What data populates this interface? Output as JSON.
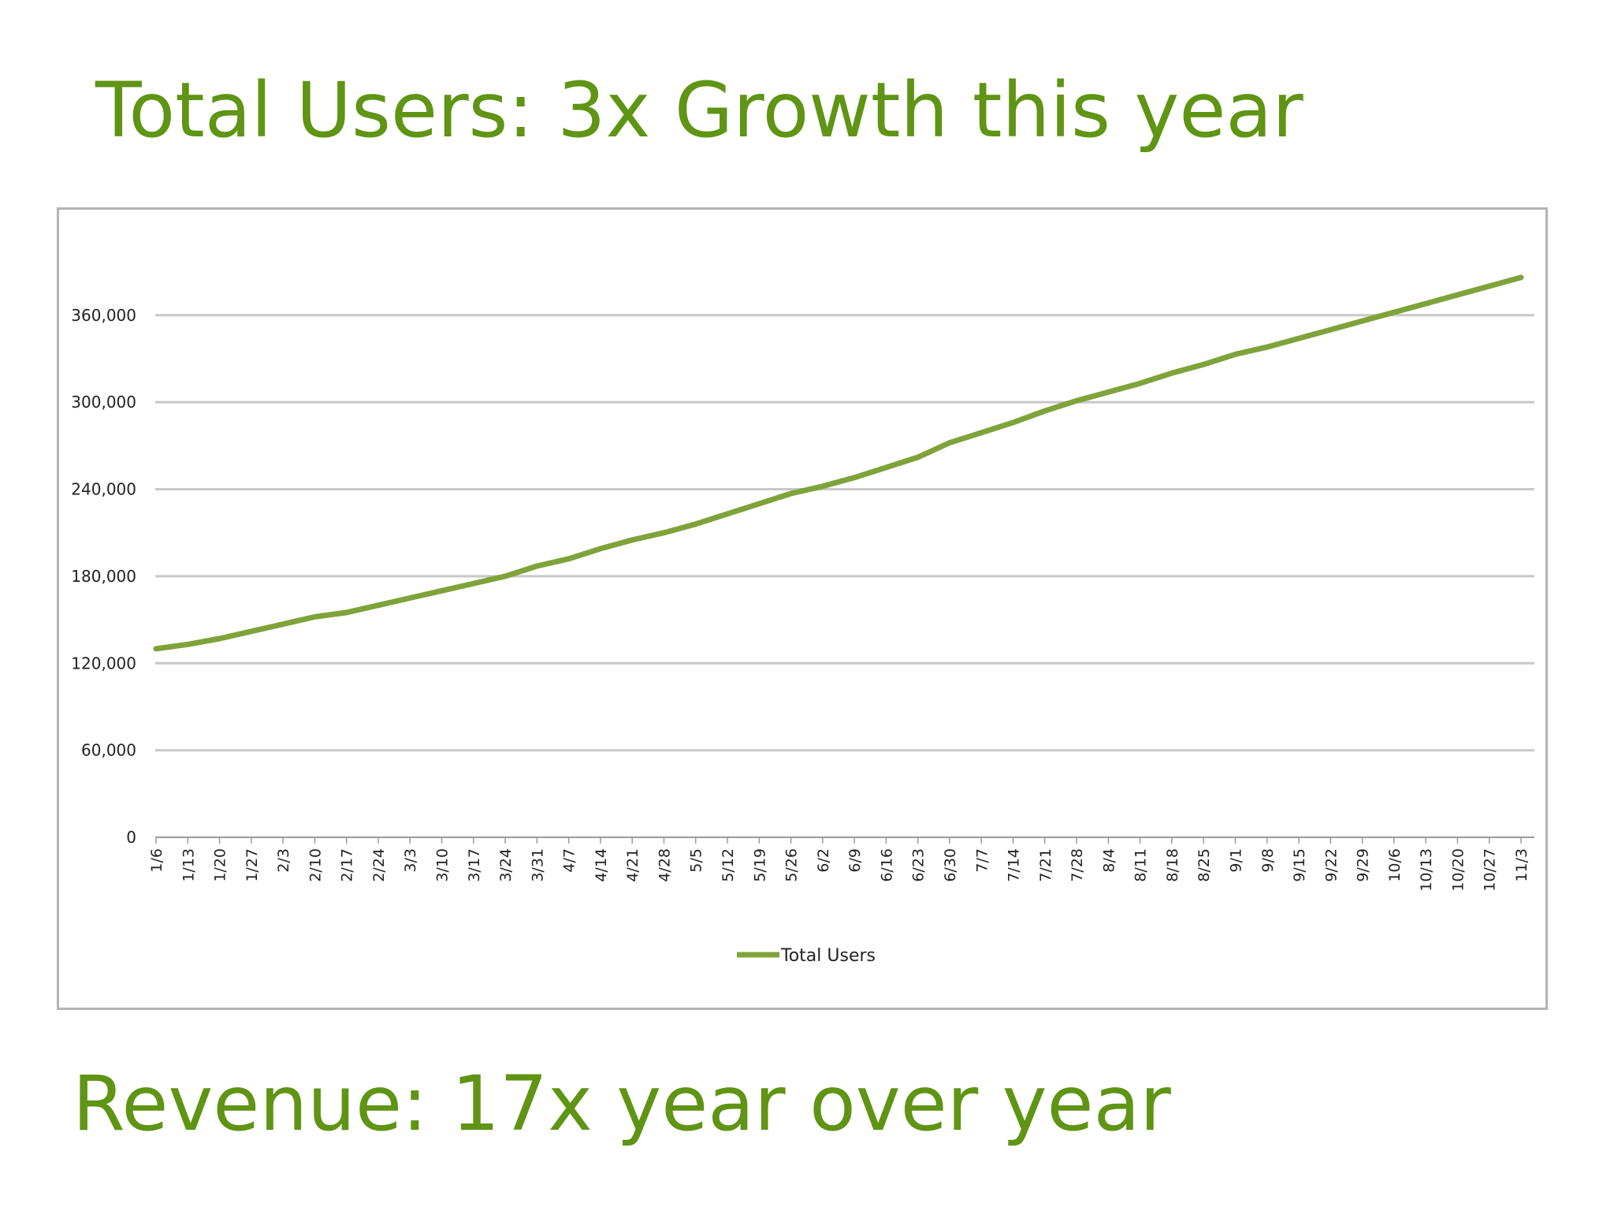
{
  "title": "Total Users: 3x Growth this year",
  "subtitle": "Revenue: 17x year over year",
  "colors": {
    "heading": "#5f9414",
    "series_line": "#7fa33a",
    "grid": "#c8c8c8",
    "frame": "#b4b4b4"
  },
  "chart_data": {
    "type": "line",
    "categories": [
      "1/6",
      "1/13",
      "1/20",
      "1/27",
      "2/3",
      "2/10",
      "2/17",
      "2/24",
      "3/3",
      "3/10",
      "3/17",
      "3/24",
      "3/31",
      "4/7",
      "4/14",
      "4/21",
      "4/28",
      "5/5",
      "5/12",
      "5/19",
      "5/26",
      "6/2",
      "6/9",
      "6/16",
      "6/23",
      "6/30",
      "7/7",
      "7/14",
      "7/21",
      "7/28",
      "8/4",
      "8/11",
      "8/18",
      "8/25",
      "9/1",
      "9/8",
      "9/15",
      "9/22",
      "9/29",
      "10/6",
      "10/13",
      "10/20",
      "10/27",
      "11/3"
    ],
    "series": [
      {
        "name": "Total Users",
        "values": [
          130000,
          133000,
          137000,
          142000,
          147000,
          152000,
          155000,
          160000,
          165000,
          170000,
          175000,
          180000,
          187000,
          192000,
          199000,
          205000,
          210000,
          216000,
          223000,
          230000,
          237000,
          242000,
          248000,
          255000,
          262000,
          272000,
          279000,
          286000,
          294000,
          301000,
          307000,
          313000,
          320000,
          326000,
          333000,
          338000,
          344000,
          350000,
          356000,
          362000,
          368000,
          374000,
          380000,
          386000
        ]
      }
    ],
    "yticks": [
      0,
      60000,
      120000,
      180000,
      240000,
      300000,
      360000
    ],
    "ytick_labels": [
      "0",
      "60,000",
      "120,000",
      "180,000",
      "240,000",
      "300,000",
      "360,000"
    ],
    "ylim": [
      0,
      430000
    ],
    "grid": true,
    "legend_position": "bottom-center",
    "xlabel": "",
    "ylabel": ""
  }
}
